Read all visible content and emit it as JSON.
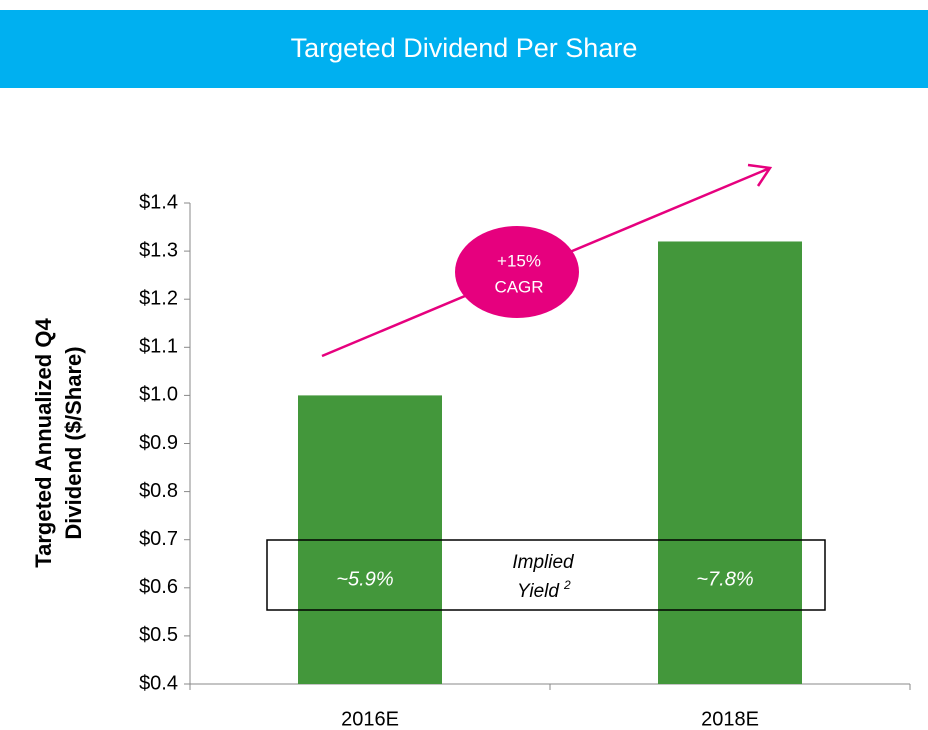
{
  "chart_data": {
    "type": "bar",
    "title": "Targeted Dividend Per Share",
    "ylabel": [
      "Targeted Annualized Q4",
      "Dividend ($/Share)"
    ],
    "categories": [
      "2016E",
      "2018E"
    ],
    "values": [
      1.0,
      1.32
    ],
    "color": "#43973b",
    "ylim": [
      0.4,
      1.4
    ],
    "yticks": [
      {
        "value": 0.4,
        "label": "$0.4"
      },
      {
        "value": 0.5,
        "label": "$0.5"
      },
      {
        "value": 0.6,
        "label": "$0.6"
      },
      {
        "value": 0.7,
        "label": "$0.7"
      },
      {
        "value": 0.8,
        "label": "$0.8"
      },
      {
        "value": 0.9,
        "label": "$0.9"
      },
      {
        "value": 1.0,
        "label": "$1.0"
      },
      {
        "value": 1.1,
        "label": "$1.1"
      },
      {
        "value": 1.2,
        "label": "$1.2"
      },
      {
        "value": 1.3,
        "label": "$1.3"
      },
      {
        "value": 1.4,
        "label": "$1.4"
      }
    ],
    "cagr_label": [
      "+15%",
      "CAGR"
    ],
    "yield_values": [
      "~5.9%",
      "~7.8%"
    ],
    "yield_title": [
      "Implied",
      "Yield"
    ],
    "yield_footnote": "2"
  }
}
